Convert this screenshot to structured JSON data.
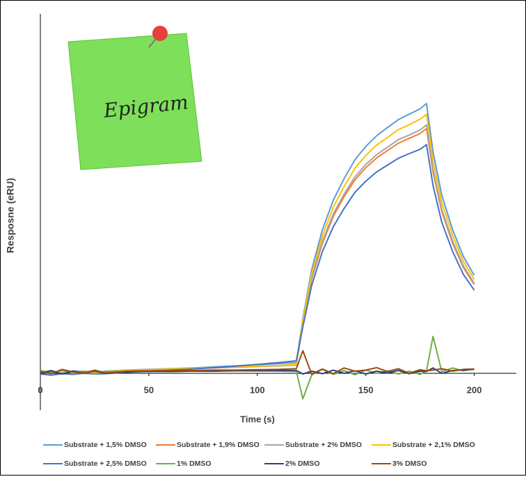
{
  "chart_data": {
    "type": "line",
    "annotation": "Epigram",
    "xlabel": "Time (s)",
    "ylabel": "Resposne (eRU)",
    "xlim": [
      0,
      220
    ],
    "xticks": [
      0,
      50,
      100,
      150,
      200
    ],
    "ylim": [
      -10,
      100
    ],
    "legend": "bottom",
    "x": [
      0,
      5,
      10,
      15,
      20,
      25,
      30,
      40,
      50,
      60,
      70,
      80,
      90,
      100,
      110,
      118,
      121,
      125,
      130,
      135,
      140,
      145,
      150,
      155,
      160,
      165,
      170,
      175,
      178,
      181,
      185,
      190,
      195,
      200
    ],
    "series": [
      {
        "name": "Substrate + 1,5% DMSO",
        "color": "#5b9bd5",
        "values": [
          0,
          0.5,
          -0.3,
          0.4,
          0.2,
          -0.2,
          0.3,
          0.6,
          0.8,
          1,
          1.2,
          1.5,
          1.8,
          2.1,
          2.4,
          2.7,
          15,
          28.5,
          39.8,
          48,
          54,
          59.3,
          63,
          66,
          68.3,
          70.5,
          72,
          73.5,
          75,
          61.5,
          49.5,
          39.8,
          32.3,
          27
        ]
      },
      {
        "name": "Substrate + 1,9% DMSO",
        "color": "#ed7d31",
        "values": [
          0.3,
          -0.2,
          0.4,
          0,
          0.3,
          0.1,
          -0.3,
          0.4,
          0.6,
          0.8,
          1,
          1.2,
          1.4,
          1.6,
          1.8,
          2,
          13.6,
          25.8,
          36,
          43.5,
          49,
          53.7,
          57.1,
          59.8,
          61.9,
          63.9,
          65.3,
          66.6,
          68,
          55.8,
          44.9,
          36,
          29.2,
          24.5
        ]
      },
      {
        "name": "Substrate + 2% DMSO",
        "color": "#a5a5a5",
        "values": [
          0.2,
          0.4,
          -0.2,
          0.3,
          0.1,
          0.4,
          0,
          0.4,
          0.6,
          0.8,
          1,
          1.2,
          1.4,
          1.6,
          1.8,
          2,
          13.8,
          26.2,
          36.6,
          44.2,
          49.7,
          54.5,
          58,
          60.7,
          62.8,
          64.9,
          66.2,
          67.6,
          69,
          56.6,
          45.5,
          36.6,
          29.7,
          24.8
        ]
      },
      {
        "name": "Substrate + 2,1% DMSO",
        "color": "#ffc000",
        "values": [
          0.4,
          0,
          0.3,
          -0.2,
          0.2,
          -0.3,
          0.2,
          0.5,
          0.7,
          0.9,
          1.1,
          1.3,
          1.5,
          1.7,
          1.9,
          2.2,
          14.4,
          27.4,
          38.2,
          46.1,
          51.8,
          56.9,
          60.5,
          63.4,
          65.5,
          67.7,
          69.1,
          70.6,
          72,
          59,
          47.5,
          38.2,
          31,
          25.9
        ]
      },
      {
        "name": "Substrate + 2,5% DMSO",
        "color": "#4472c4",
        "values": [
          -0.5,
          -0.8,
          -0.4,
          -0.6,
          -0.3,
          -0.5,
          -0.4,
          0,
          0.3,
          0.6,
          0.9,
          1.3,
          1.7,
          2.2,
          2.7,
          3.2,
          12.7,
          24.1,
          33.7,
          40.6,
          45.7,
          50.2,
          53.3,
          55.9,
          57.8,
          59.7,
          61,
          62.2,
          63.5,
          52.1,
          41.9,
          33.7,
          27.3,
          22.9
        ]
      },
      {
        "name": "1% DMSO",
        "color": "#70ad47",
        "values": [
          0.5,
          -0.2,
          0.6,
          -0.4,
          0.3,
          -0.5,
          0.2,
          0.1,
          0.3,
          0.2,
          0.4,
          0.3,
          0.5,
          0.4,
          0.3,
          0.2,
          -7.4,
          -0.8,
          0.8,
          -0.6,
          0.5,
          -0.7,
          0.6,
          -0.3,
          0.4,
          -0.5,
          0.3,
          -0.6,
          0.4,
          10,
          0.2,
          1.2,
          0.4,
          1
        ]
      },
      {
        "name": "2% DMSO",
        "color": "#264478",
        "values": [
          -0.3,
          0.4,
          -0.5,
          0.3,
          -0.2,
          0.4,
          -0.3,
          0.1,
          0.2,
          0.2,
          0.3,
          0.3,
          0.4,
          0.4,
          0.5,
          0.5,
          -0.5,
          0.3,
          -0.4,
          0.6,
          -0.3,
          0.4,
          -0.5,
          0.3,
          -0.2,
          0.5,
          -0.4,
          0.3,
          0.2,
          1.2,
          -0.3,
          0.5,
          0.6,
          0.8
        ]
      },
      {
        "name": "3% DMSO",
        "color": "#9e480e",
        "values": [
          0.2,
          -0.4,
          0.8,
          0.1,
          -0.3,
          0.6,
          -0.2,
          0.3,
          0.4,
          0.5,
          0.5,
          0.6,
          0.6,
          0.7,
          0.8,
          1,
          6,
          -0.5,
          0.9,
          -0.4,
          1.2,
          0.3,
          0.6,
          1.3,
          0.2,
          1,
          -0.3,
          0.7,
          0.4,
          0.6,
          1,
          0.3,
          0.8,
          0.9
        ]
      }
    ]
  }
}
